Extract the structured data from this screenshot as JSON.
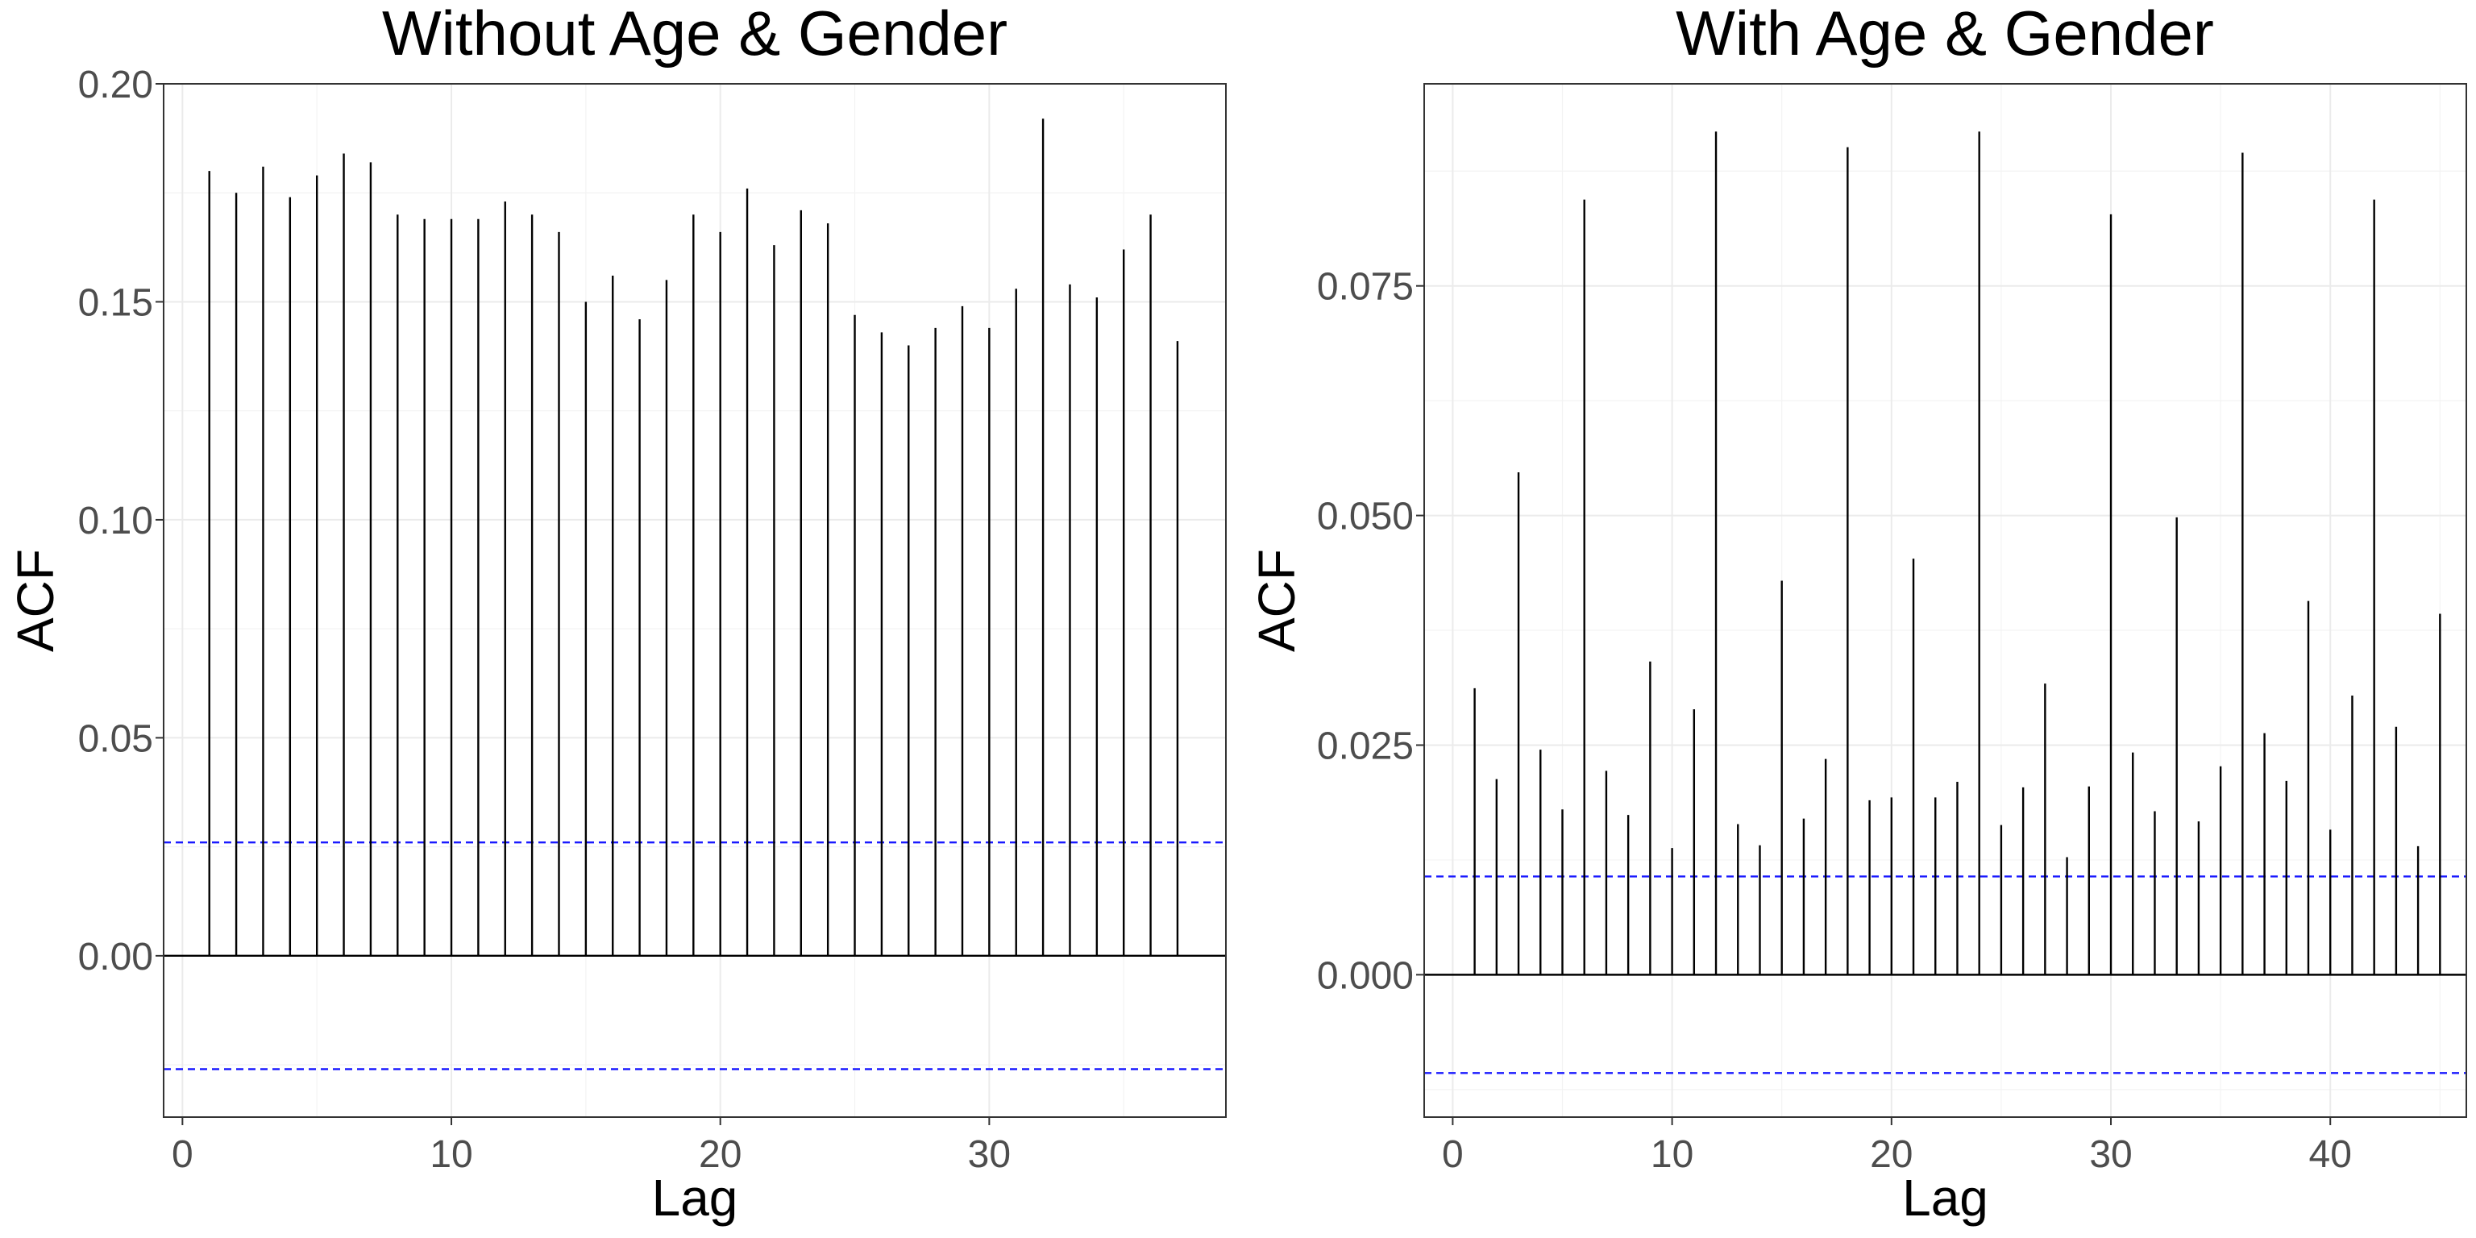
{
  "chart_data": [
    {
      "type": "bar",
      "title": "Without Age & Gender",
      "xlabel": "Lag",
      "ylabel": "ACF",
      "xlim": [
        -0.7,
        38.8
      ],
      "ylim": [
        -0.037,
        0.2
      ],
      "xticks": [
        0,
        10,
        20,
        30
      ],
      "xtick_labels": [
        "0",
        "10",
        "20",
        "30"
      ],
      "yticks": [
        0.0,
        0.05,
        0.1,
        0.15,
        0.2
      ],
      "ytick_labels": [
        "0.00",
        "0.05",
        "0.10",
        "0.15",
        "0.20"
      ],
      "grid": true,
      "confidence_bounds": [
        0.026,
        -0.026
      ],
      "lags": [
        1,
        2,
        3,
        4,
        5,
        6,
        7,
        8,
        9,
        10,
        11,
        12,
        13,
        14,
        15,
        16,
        17,
        18,
        19,
        20,
        21,
        22,
        23,
        24,
        25,
        26,
        27,
        28,
        29,
        30,
        31,
        32,
        33,
        34,
        35,
        36,
        37
      ],
      "values": [
        0.18,
        0.175,
        0.181,
        0.174,
        0.179,
        0.184,
        0.182,
        0.17,
        0.169,
        0.169,
        0.169,
        0.173,
        0.17,
        0.166,
        0.15,
        0.156,
        0.146,
        0.155,
        0.17,
        0.166,
        0.176,
        0.163,
        0.171,
        0.168,
        0.147,
        0.143,
        0.14,
        0.144,
        0.149,
        0.144,
        0.153,
        0.192,
        0.154,
        0.151,
        0.162,
        0.17,
        0.141
      ]
    },
    {
      "type": "bar",
      "title": "With Age & Gender",
      "xlabel": "Lag",
      "ylabel": "ACF",
      "xlim": [
        -1.3,
        46.2
      ],
      "ylim": [
        -0.0155,
        0.097
      ],
      "xticks": [
        0,
        10,
        20,
        30,
        40
      ],
      "xtick_labels": [
        "0",
        "10",
        "20",
        "30",
        "40"
      ],
      "yticks": [
        0.0,
        0.025,
        0.05,
        0.075
      ],
      "ytick_labels": [
        "0.000",
        "0.025",
        "0.050",
        "0.075"
      ],
      "grid": true,
      "confidence_bounds": [
        0.0107,
        -0.0107
      ],
      "lags": [
        1,
        2,
        3,
        4,
        5,
        6,
        7,
        8,
        9,
        10,
        11,
        12,
        13,
        14,
        15,
        16,
        17,
        18,
        19,
        20,
        21,
        22,
        23,
        24,
        25,
        26,
        27,
        28,
        29,
        30,
        31,
        32,
        33,
        34,
        35,
        36,
        37,
        38,
        39,
        40,
        41,
        42,
        43,
        44,
        45
      ],
      "values": [
        0.0312,
        0.0213,
        0.0547,
        0.0245,
        0.018,
        0.0844,
        0.0222,
        0.0174,
        0.0341,
        0.0138,
        0.0289,
        0.0918,
        0.0164,
        0.0141,
        0.0429,
        0.017,
        0.0235,
        0.0901,
        0.019,
        0.0193,
        0.0453,
        0.0193,
        0.021,
        0.0918,
        0.0163,
        0.0204,
        0.0317,
        0.0128,
        0.0205,
        0.0828,
        0.0242,
        0.0178,
        0.0498,
        0.0167,
        0.0227,
        0.0895,
        0.0263,
        0.0211,
        0.0407,
        0.0158,
        0.0304,
        0.0844,
        0.027,
        0.014,
        0.0393
      ]
    }
  ]
}
